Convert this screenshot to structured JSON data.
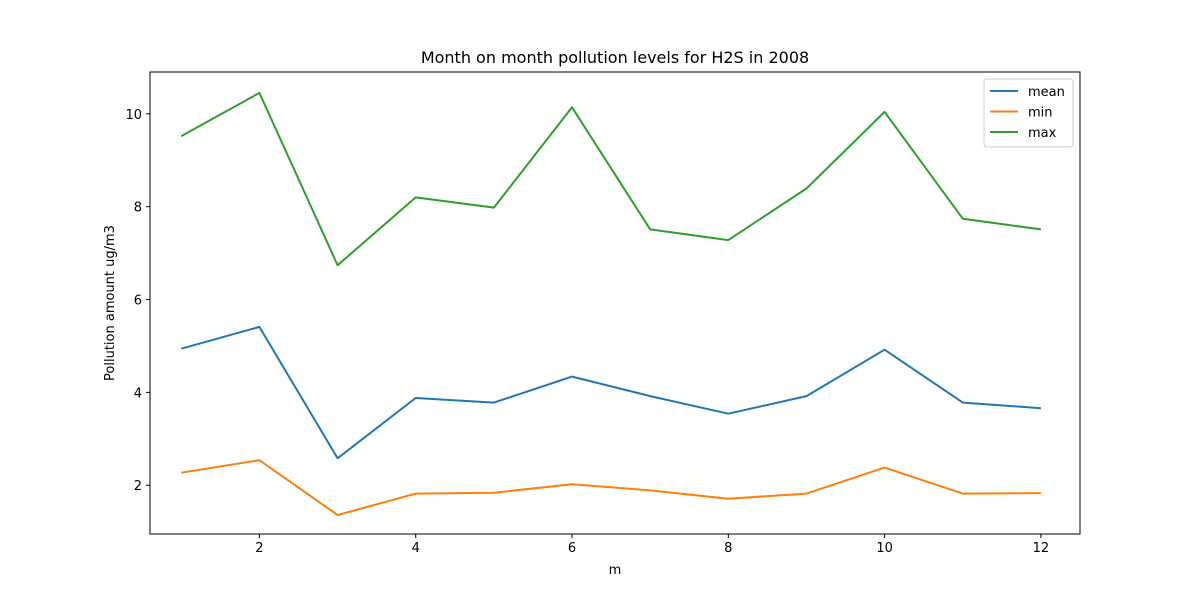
{
  "chart_data": {
    "type": "line",
    "title": "Month on month pollution levels for H2S in 2008",
    "xlabel": "m",
    "ylabel": "Pollution amount ug/m3",
    "x": [
      1,
      2,
      3,
      4,
      5,
      6,
      7,
      8,
      9,
      10,
      11,
      12
    ],
    "xlim": [
      0.6,
      12.5
    ],
    "ylim": [
      0.95,
      10.9
    ],
    "x_ticks": [
      "2",
      "4",
      "6",
      "8",
      "10",
      "12"
    ],
    "y_ticks": [
      "2",
      "4",
      "6",
      "8",
      "10"
    ],
    "grid": false,
    "legend_position": "top-right",
    "series": [
      {
        "name": "mean",
        "color": "#1f77b4",
        "values": [
          4.94,
          5.41,
          2.58,
          3.88,
          3.78,
          4.34,
          3.92,
          3.54,
          3.92,
          4.92,
          3.78,
          3.66
        ]
      },
      {
        "name": "min",
        "color": "#ff7f0e",
        "values": [
          2.27,
          2.54,
          1.36,
          1.82,
          1.84,
          2.02,
          1.89,
          1.71,
          1.82,
          2.38,
          1.82,
          1.83
        ]
      },
      {
        "name": "max",
        "color": "#2ca02c",
        "values": [
          9.52,
          10.45,
          6.74,
          8.2,
          7.98,
          10.14,
          7.51,
          7.28,
          8.39,
          10.04,
          7.74,
          7.51
        ]
      }
    ]
  }
}
